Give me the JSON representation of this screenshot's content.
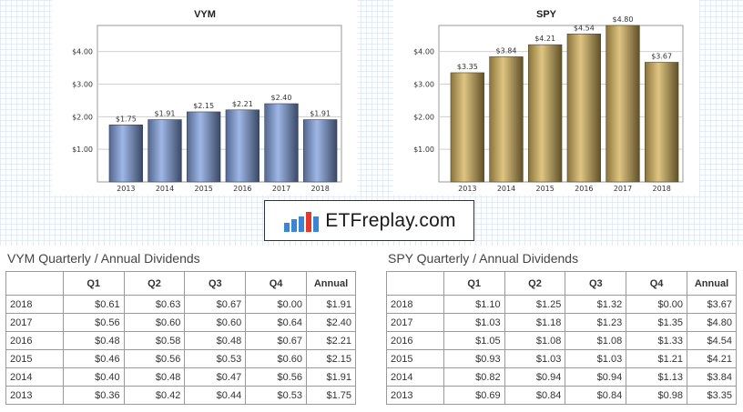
{
  "chart_data": [
    {
      "type": "bar",
      "title": "VYM",
      "categories": [
        "2013",
        "2014",
        "2015",
        "2016",
        "2017",
        "2018"
      ],
      "values": [
        1.75,
        1.91,
        2.15,
        2.21,
        2.4,
        1.91
      ],
      "data_labels": [
        "$1.75",
        "$1.91",
        "$2.15",
        "$2.21",
        "$2.40",
        "$1.91"
      ],
      "yticks": [
        "$1.00",
        "$2.00",
        "$3.00",
        "$4.00"
      ],
      "ytick_values": [
        1,
        2,
        3,
        4
      ],
      "ylim": [
        0,
        4.8
      ],
      "grid": true,
      "bar_color": "#7f9fdd"
    },
    {
      "type": "bar",
      "title": "SPY",
      "categories": [
        "2013",
        "2014",
        "2015",
        "2016",
        "2017",
        "2018"
      ],
      "values": [
        3.35,
        3.84,
        4.21,
        4.54,
        4.8,
        3.67
      ],
      "data_labels": [
        "$3.35",
        "$3.84",
        "$4.21",
        "$4.54",
        "$4.80",
        "$3.67"
      ],
      "yticks": [
        "$1.00",
        "$2.00",
        "$3.00",
        "$4.00"
      ],
      "ytick_values": [
        1,
        2,
        3,
        4
      ],
      "ylim": [
        0,
        4.8
      ],
      "grid": true,
      "bar_color": "#d4b15a"
    }
  ],
  "logo": {
    "text": "ETFreplay.com",
    "bar_colors": [
      "#3a86d4",
      "#3a86d4",
      "#3a86d4",
      "#e23a2e",
      "#3a86d4"
    ]
  },
  "tables": [
    {
      "title": "VYM Quarterly / Annual Dividends",
      "headers": [
        "",
        "Q1",
        "Q2",
        "Q3",
        "Q4",
        "Annual"
      ],
      "rows": [
        [
          "2018",
          "$0.61",
          "$0.63",
          "$0.67",
          "$0.00",
          "$1.91"
        ],
        [
          "2017",
          "$0.56",
          "$0.60",
          "$0.60",
          "$0.64",
          "$2.40"
        ],
        [
          "2016",
          "$0.48",
          "$0.58",
          "$0.48",
          "$0.67",
          "$2.21"
        ],
        [
          "2015",
          "$0.46",
          "$0.56",
          "$0.53",
          "$0.60",
          "$2.15"
        ],
        [
          "2014",
          "$0.40",
          "$0.48",
          "$0.47",
          "$0.56",
          "$1.91"
        ],
        [
          "2013",
          "$0.36",
          "$0.42",
          "$0.44",
          "$0.53",
          "$1.75"
        ]
      ]
    },
    {
      "title": "SPY Quarterly / Annual Dividends",
      "headers": [
        "",
        "Q1",
        "Q2",
        "Q3",
        "Q4",
        "Annual"
      ],
      "rows": [
        [
          "2018",
          "$1.10",
          "$1.25",
          "$1.32",
          "$0.00",
          "$3.67"
        ],
        [
          "2017",
          "$1.03",
          "$1.18",
          "$1.23",
          "$1.35",
          "$4.80"
        ],
        [
          "2016",
          "$1.05",
          "$1.08",
          "$1.08",
          "$1.33",
          "$4.54"
        ],
        [
          "2015",
          "$0.93",
          "$1.03",
          "$1.03",
          "$1.21",
          "$4.21"
        ],
        [
          "2014",
          "$0.82",
          "$0.94",
          "$0.94",
          "$1.13",
          "$3.84"
        ],
        [
          "2013",
          "$0.69",
          "$0.84",
          "$0.84",
          "$0.98",
          "$3.35"
        ]
      ]
    }
  ]
}
